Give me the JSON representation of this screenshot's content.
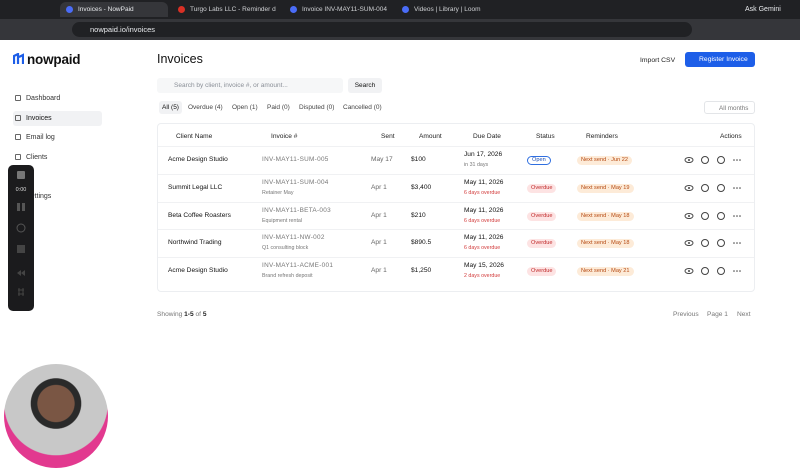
{
  "browser": {
    "tabs": [
      "Invoices - NowPaid",
      "Turgo Labs LLC - Reminder d",
      "Invoice INV-MAY11-SUM-004",
      "Videos | Library | Loom"
    ],
    "ask_gemini": "Ask Gemini",
    "url": "nowpaid.io/invoices"
  },
  "sidebar": {
    "logo": "nowpaid",
    "nav": [
      "Dashboard",
      "Invoices",
      "Email log",
      "Clients",
      "Settings"
    ]
  },
  "header": {
    "title": "Invoices",
    "import_button": "Import CSV",
    "register_button": "Register Invoice"
  },
  "search": {
    "placeholder": "Search by client, invoice #, or amount...",
    "button": "Search"
  },
  "filters": [
    "All (5)",
    "Overdue (4)",
    "Open (1)",
    "Paid (0)",
    "Disputed (0)",
    "Cancelled (0)"
  ],
  "month_filter": "All months",
  "table": {
    "headers": [
      "Client Name",
      "Invoice #",
      "Sent",
      "Amount",
      "Due Date",
      "Status",
      "Reminders",
      "Actions"
    ],
    "rows": [
      {
        "client": "Acme Design Studio",
        "invoice": "INV-MAY11-SUM-005",
        "sent": "May 17",
        "amount": "$100",
        "due_date": "Jun 17, 2026",
        "due_note": "in 31 days",
        "status": "Open",
        "reminder": "Next send · Jun 22"
      },
      {
        "client": "Summit Legal LLC",
        "invoice": "INV-MAY11-SUM-004",
        "note": "Retainer May",
        "sent": "Apr 1",
        "amount": "$3,400",
        "due_date": "May 11, 2026",
        "due_note": "6 days overdue",
        "status": "Overdue",
        "reminder": "Next send · May 19"
      },
      {
        "client": "Beta Coffee Roasters",
        "invoice": "INV-MAY11-BETA-003",
        "note": "Equipment rental",
        "sent": "Apr 1",
        "amount": "$210",
        "due_date": "May 11, 2026",
        "due_note": "6 days overdue",
        "status": "Overdue",
        "reminder": "Next send · May 18"
      },
      {
        "client": "Northwind Trading",
        "invoice": "INV-MAY11-NW-002",
        "note": "Q1 consulting block",
        "sent": "Apr 1",
        "amount": "$890.5",
        "due_date": "May 11, 2026",
        "due_note": "6 days overdue",
        "status": "Overdue",
        "reminder": "Next send · May 18"
      },
      {
        "client": "Acme Design Studio",
        "invoice": "INV-MAY11-ACME-001",
        "note": "Brand refresh deposit",
        "sent": "Apr 1",
        "amount": "$1,250",
        "due_date": "May 15, 2026",
        "due_note": "2 days overdue",
        "status": "Overdue",
        "reminder": "Next send · May 21"
      }
    ]
  },
  "footer": {
    "showing": "Showing",
    "range": "1-5",
    "of": "of",
    "total": "5",
    "previous": "Previous",
    "page": "Page 1",
    "next": "Next"
  },
  "loom": {
    "timer": "0:00"
  }
}
